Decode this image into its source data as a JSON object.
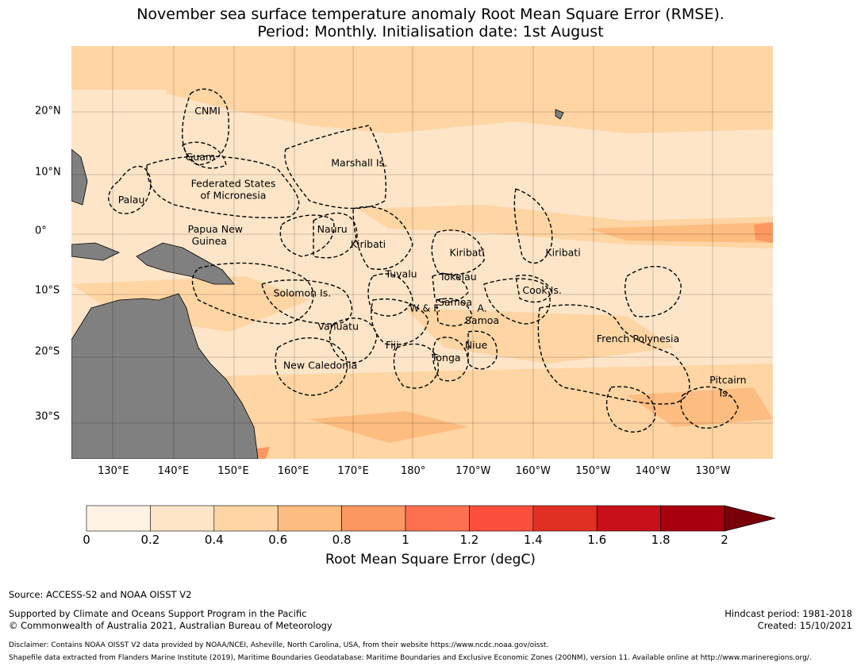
{
  "title_line1": "November sea surface temperature anomaly Root Mean Square Error (RMSE).",
  "title_line2": "Period: Monthly. Initialisation date: 1st August",
  "lon_ticks": [
    {
      "label": "130°E",
      "lon": 130
    },
    {
      "label": "140°E",
      "lon": 140
    },
    {
      "label": "150°E",
      "lon": 150
    },
    {
      "label": "160°E",
      "lon": 160
    },
    {
      "label": "170°E",
      "lon": 170
    },
    {
      "label": "180°",
      "lon": 180
    },
    {
      "label": "170°W",
      "lon": 190
    },
    {
      "label": "160°W",
      "lon": 200
    },
    {
      "label": "150°W",
      "lon": 210
    },
    {
      "label": "140°W",
      "lon": 220
    },
    {
      "label": "130°W",
      "lon": 230
    }
  ],
  "lat_ticks": [
    {
      "label": "20°N",
      "lat": 20
    },
    {
      "label": "10°N",
      "lat": 10
    },
    {
      "label": "0°",
      "lat": 0
    },
    {
      "label": "10°S",
      "lat": -10
    },
    {
      "label": "20°S",
      "lat": -20
    },
    {
      "label": "30°S",
      "lat": -30
    }
  ],
  "map_extent": {
    "lon_min": 123,
    "lon_max": 240,
    "lat_min": -36,
    "lat_max": 30
  },
  "regions": [
    {
      "name": "CNMI",
      "lon": 145.7,
      "lat": 19.5
    },
    {
      "name": "Guam",
      "lon": 144.5,
      "lat": 12.0
    },
    {
      "name": "Marshall Is.",
      "lon": 171.0,
      "lat": 11.0
    },
    {
      "name": "Federated States",
      "lon": 150.0,
      "lat": 7.5
    },
    {
      "name": "of Micronesia",
      "lon": 150.0,
      "lat": 5.5
    },
    {
      "name": "Palau",
      "lon": 133.0,
      "lat": 4.8
    },
    {
      "name": "Papua New",
      "lon": 147.0,
      "lat": -0.2
    },
    {
      "name": "Guinea",
      "lon": 146.0,
      "lat": -2.2
    },
    {
      "name": "Nauru",
      "lon": 166.5,
      "lat": -0.2
    },
    {
      "name": "Kiribati",
      "lon": 172.5,
      "lat": -2.8
    },
    {
      "name": "Kiribati",
      "lon": 189.0,
      "lat": -4.2
    },
    {
      "name": "Kiribati",
      "lon": 205.0,
      "lat": -4.2
    },
    {
      "name": "Tuvalu",
      "lon": 178.0,
      "lat": -7.8
    },
    {
      "name": "Tokelau",
      "lon": 187.5,
      "lat": -8.3
    },
    {
      "name": "Solomon Is.",
      "lon": 161.5,
      "lat": -11.0
    },
    {
      "name": "Cook Is.",
      "lon": 201.5,
      "lat": -10.5
    },
    {
      "name": "Samoa",
      "lon": 187.0,
      "lat": -12.5
    },
    {
      "name": "W & F.",
      "lon": 182.0,
      "lat": -13.5
    },
    {
      "name": "A.",
      "lon": 191.5,
      "lat": -13.5
    },
    {
      "name": "Samoa",
      "lon": 191.5,
      "lat": -15.5
    },
    {
      "name": "Vanuatu",
      "lon": 167.5,
      "lat": -16.5
    },
    {
      "name": "French Polynesia",
      "lon": 217.5,
      "lat": -18.5
    },
    {
      "name": "Fiji",
      "lon": 176.5,
      "lat": -19.5
    },
    {
      "name": "Niue",
      "lon": 190.5,
      "lat": -19.5
    },
    {
      "name": "Tonga",
      "lon": 185.5,
      "lat": -21.5
    },
    {
      "name": "New Caledonia",
      "lon": 164.5,
      "lat": -22.7
    },
    {
      "name": "Pitcairn",
      "lon": 232.5,
      "lat": -25.0
    },
    {
      "name": "Is.",
      "lon": 232.0,
      "lat": -27.0
    }
  ],
  "colorbar": {
    "ticks": [
      "0",
      "0.2",
      "0.4",
      "0.6",
      "0.8",
      "1",
      "1.2",
      "1.4",
      "1.6",
      "1.8",
      "2"
    ],
    "colors": [
      "#fff3e3",
      "#fee5c8",
      "#fed5a3",
      "#fdbc80",
      "#fc9762",
      "#fc7050",
      "#fb4f3c",
      "#e13023",
      "#c8101a",
      "#a8000f"
    ],
    "extend_color": "#7a0008",
    "title": "Root Mean Square Error (degC)"
  },
  "colors": {
    "land": "#808080",
    "ocean_base": "#fee5c8",
    "ocean_warm": "#fed5a3",
    "ocean_hot": "#fc9762"
  },
  "footer": {
    "source": "Source: ACCESS-S2 and NOAA OISST V2",
    "support1": "Supported by Climate and Oceans Support Program in the Pacific",
    "support2": "© Commonwealth of Australia 2021, Australian Bureau of Meteorology",
    "hindcast": "Hindcast period: 1981-2018",
    "created": "Created: 15/10/2021",
    "disclaimer": "Disclaimer: Contains NOAA OISST V2 data provided by NOAA/NCEI, Asheville, North Carolina, USA, from their website https://www.ncdc.noaa.gov/oisst.",
    "shapefile": "Shapefile data extracted from Flanders Marine Institute (2019), Maritime Boundaries Geodatabase: Maritime Boundaries and Exclusive Economic Zones (200NM), version 11. Available online at http://www.marineregions.org/."
  }
}
